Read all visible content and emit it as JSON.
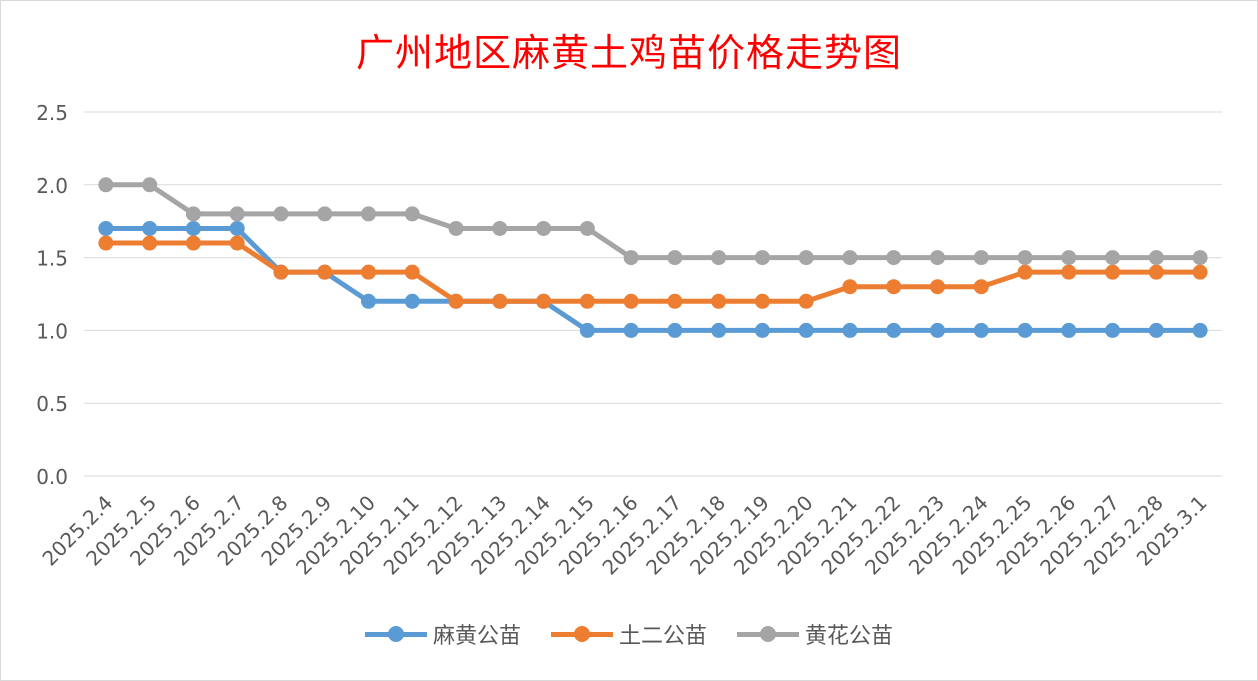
{
  "title": "广州地区麻黄土鸡苗价格走势图",
  "chart_data": {
    "type": "line",
    "title": "广州地区麻黄土鸡苗价格走势图",
    "xlabel": "",
    "ylabel": "",
    "ylim": [
      0,
      2.5
    ],
    "yticks": [
      "0.0",
      "0.5",
      "1.0",
      "1.5",
      "2.0",
      "2.5"
    ],
    "grid": true,
    "legend_position": "bottom",
    "categories": [
      "2025.2.4",
      "2025.2.5",
      "2025.2.6",
      "2025.2.7",
      "2025.2.8",
      "2025.2.9",
      "2025.2.10",
      "2025.2.11",
      "2025.2.12",
      "2025.2.13",
      "2025.2.14",
      "2025.2.15",
      "2025.2.16",
      "2025.2.17",
      "2025.2.18",
      "2025.2.19",
      "2025.2.20",
      "2025.2.21",
      "2025.2.22",
      "2025.2.23",
      "2025.2.24",
      "2025.2.25",
      "2025.2.26",
      "2025.2.27",
      "2025.2.28",
      "2025.3.1"
    ],
    "series": [
      {
        "name": "麻黄公苗",
        "color": "#5b9bd5",
        "values": [
          1.7,
          1.7,
          1.7,
          1.7,
          1.4,
          1.4,
          1.2,
          1.2,
          1.2,
          1.2,
          1.2,
          1.0,
          1.0,
          1.0,
          1.0,
          1.0,
          1.0,
          1.0,
          1.0,
          1.0,
          1.0,
          1.0,
          1.0,
          1.0,
          1.0,
          1.0
        ]
      },
      {
        "name": "土二公苗",
        "color": "#ed7d31",
        "values": [
          1.6,
          1.6,
          1.6,
          1.6,
          1.4,
          1.4,
          1.4,
          1.4,
          1.2,
          1.2,
          1.2,
          1.2,
          1.2,
          1.2,
          1.2,
          1.2,
          1.2,
          1.3,
          1.3,
          1.3,
          1.3,
          1.4,
          1.4,
          1.4,
          1.4,
          1.4
        ]
      },
      {
        "name": "黄花公苗",
        "color": "#a5a5a5",
        "values": [
          2.0,
          2.0,
          1.8,
          1.8,
          1.8,
          1.8,
          1.8,
          1.8,
          1.7,
          1.7,
          1.7,
          1.7,
          1.5,
          1.5,
          1.5,
          1.5,
          1.5,
          1.5,
          1.5,
          1.5,
          1.5,
          1.5,
          1.5,
          1.5,
          1.5,
          1.5
        ]
      }
    ]
  }
}
